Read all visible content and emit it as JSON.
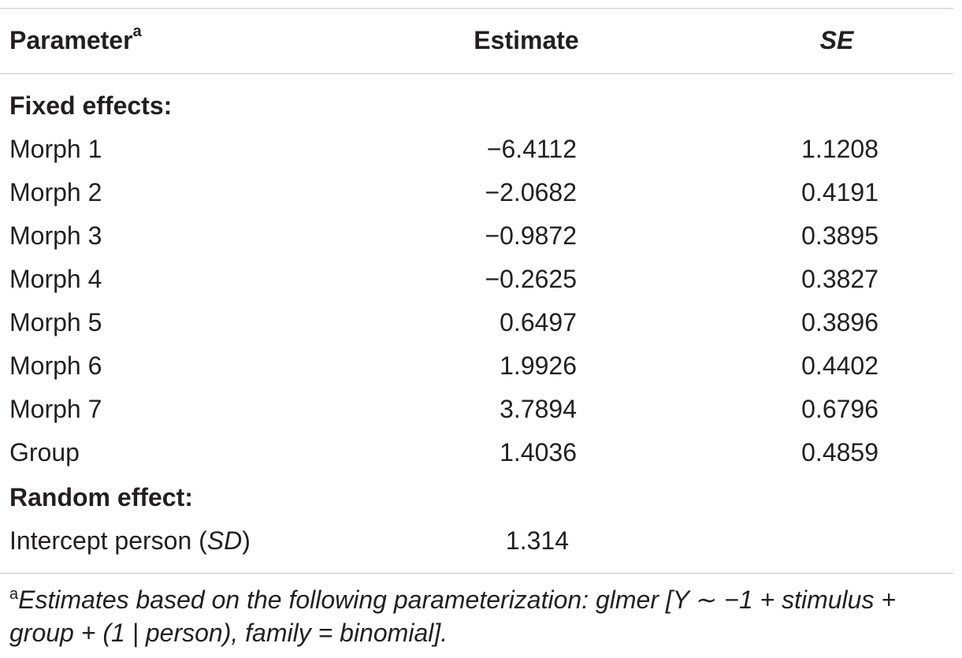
{
  "table": {
    "headers": {
      "parameter": "Parameter",
      "parameter_note": "a",
      "estimate": "Estimate",
      "se": "SE"
    },
    "sections": [
      {
        "title": "Fixed effects:",
        "rows": [
          {
            "parameter": "Morph 1",
            "estimate": "−6.4112",
            "se": "1.1208"
          },
          {
            "parameter": "Morph 2",
            "estimate": "−2.0682",
            "se": "0.4191"
          },
          {
            "parameter": "Morph 3",
            "estimate": "−0.9872",
            "se": "0.3895"
          },
          {
            "parameter": "Morph 4",
            "estimate": "−0.2625",
            "se": "0.3827"
          },
          {
            "parameter": "Morph 5",
            "estimate": "0.6497",
            "se": "0.3896"
          },
          {
            "parameter": "Morph 6",
            "estimate": "1.9926",
            "se": "0.4402"
          },
          {
            "parameter": "Morph 7",
            "estimate": "3.7894",
            "se": "0.6796"
          },
          {
            "parameter": "Group",
            "estimate": "1.4036",
            "se": "0.4859"
          }
        ]
      },
      {
        "title": "Random effect:",
        "rows": [
          {
            "parameter_prefix": "Intercept person (",
            "parameter_italic": "SD",
            "parameter_suffix": ")",
            "estimate": "1.314",
            "se": ""
          }
        ]
      }
    ],
    "footnote": {
      "marker": "a",
      "line1_text": "Estimates based on the following parameterization: glmer [Y ∼ −1 + stimulus +",
      "line2_text": "group + (1 | person), family = binomial]."
    }
  }
}
